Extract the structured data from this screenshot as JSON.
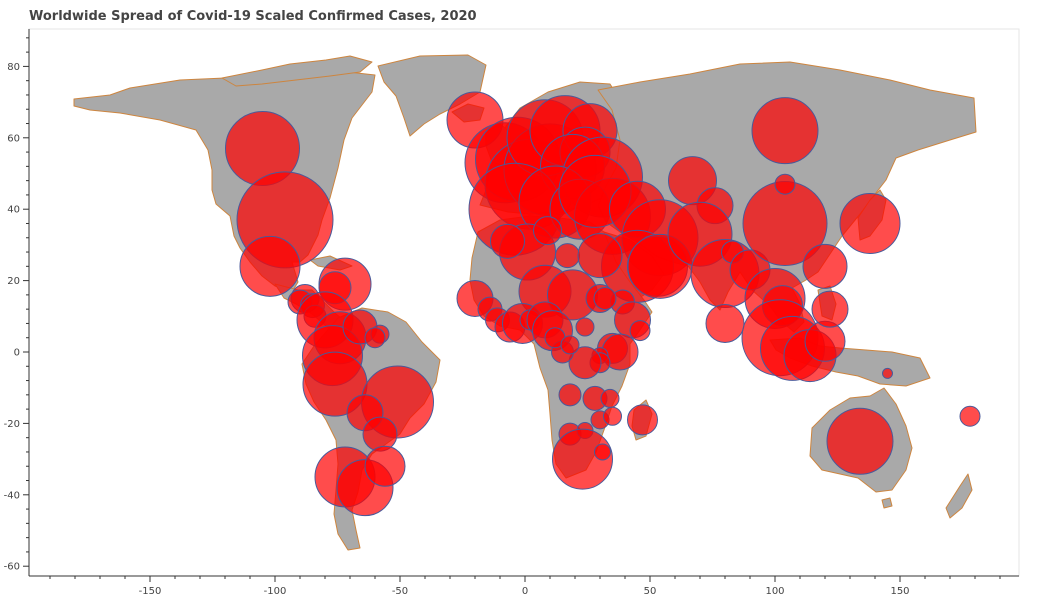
{
  "chart_data": {
    "type": "scatter",
    "title": "Worldwide Spread of Covid-19 Scaled Confirmed Cases, 2020",
    "xlabel": "",
    "ylabel": "",
    "xlim": [
      -198,
      198
    ],
    "ylim": [
      -62,
      90
    ],
    "x_ticks": [
      -150,
      -100,
      -50,
      0,
      50,
      100,
      150
    ],
    "y_ticks": [
      -60,
      -40,
      -20,
      0,
      20,
      40,
      60,
      80
    ],
    "grid": false,
    "legend": "none",
    "colors": {
      "land": "#a9a9a9",
      "border": "#cd853f",
      "bubble_fill": "#ff0000",
      "bubble_stroke": "#4a5a9a"
    },
    "points": [
      {
        "x": -105,
        "y": 57,
        "r": 37
      },
      {
        "x": -96,
        "y": 37,
        "r": 48
      },
      {
        "x": -102,
        "y": 24,
        "r": 30
      },
      {
        "x": -72,
        "y": 19,
        "r": 26
      },
      {
        "x": -76,
        "y": 18,
        "r": 16
      },
      {
        "x": -88,
        "y": 15,
        "r": 14
      },
      {
        "x": -90,
        "y": 14,
        "r": 12
      },
      {
        "x": -85,
        "y": 13,
        "r": 12
      },
      {
        "x": -84,
        "y": 10,
        "r": 11
      },
      {
        "x": -80,
        "y": 9,
        "r": 28
      },
      {
        "x": -74,
        "y": 4,
        "r": 26
      },
      {
        "x": -77,
        "y": -1,
        "r": 30
      },
      {
        "x": -76,
        "y": -9,
        "r": 32
      },
      {
        "x": -51,
        "y": -14,
        "r": 36
      },
      {
        "x": -64,
        "y": -17,
        "r": 18
      },
      {
        "x": -58,
        "y": -23,
        "r": 17
      },
      {
        "x": -72,
        "y": -35,
        "r": 30
      },
      {
        "x": -64,
        "y": -38,
        "r": 28
      },
      {
        "x": -56,
        "y": -32,
        "r": 20
      },
      {
        "x": -66,
        "y": 7,
        "r": 17
      },
      {
        "x": -58,
        "y": 5,
        "r": 9
      },
      {
        "x": -60,
        "y": 4,
        "r": 10
      },
      {
        "x": -20,
        "y": 65,
        "r": 28
      },
      {
        "x": -8,
        "y": 53,
        "r": 40
      },
      {
        "x": -3,
        "y": 54,
        "r": 42
      },
      {
        "x": 2,
        "y": 47,
        "r": 45
      },
      {
        "x": 10,
        "y": 51,
        "r": 46
      },
      {
        "x": 8,
        "y": 60,
        "r": 38
      },
      {
        "x": 16,
        "y": 62,
        "r": 35
      },
      {
        "x": 26,
        "y": 62,
        "r": 27
      },
      {
        "x": 24,
        "y": 56,
        "r": 25
      },
      {
        "x": 19,
        "y": 52,
        "r": 32
      },
      {
        "x": 31,
        "y": 49,
        "r": 40
      },
      {
        "x": -4,
        "y": 40,
        "r": 46
      },
      {
        "x": 12,
        "y": 42,
        "r": 36
      },
      {
        "x": 22,
        "y": 40,
        "r": 30
      },
      {
        "x": 35,
        "y": 38,
        "r": 38
      },
      {
        "x": 28,
        "y": 45,
        "r": 36
      },
      {
        "x": 45,
        "y": 40,
        "r": 28
      },
      {
        "x": 54,
        "y": 32,
        "r": 38
      },
      {
        "x": 45,
        "y": 24,
        "r": 36
      },
      {
        "x": 53,
        "y": 24,
        "r": 30
      },
      {
        "x": 54,
        "y": 24,
        "r": 32
      },
      {
        "x": 67,
        "y": 48,
        "r": 24
      },
      {
        "x": 76,
        "y": 41,
        "r": 18
      },
      {
        "x": 70,
        "y": 33,
        "r": 32
      },
      {
        "x": 80,
        "y": 22,
        "r": 34
      },
      {
        "x": 83,
        "y": 28,
        "r": 11
      },
      {
        "x": 90,
        "y": 23,
        "r": 20
      },
      {
        "x": 80,
        "y": 8,
        "r": 19
      },
      {
        "x": 104,
        "y": 36,
        "r": 42
      },
      {
        "x": 104,
        "y": 47,
        "r": 10
      },
      {
        "x": 104,
        "y": 62,
        "r": 33
      },
      {
        "x": 120,
        "y": 24,
        "r": 22
      },
      {
        "x": 138,
        "y": 36,
        "r": 30
      },
      {
        "x": 100,
        "y": 15,
        "r": 30
      },
      {
        "x": 103,
        "y": 13,
        "r": 20
      },
      {
        "x": 102,
        "y": 4,
        "r": 38
      },
      {
        "x": 107,
        "y": 1,
        "r": 32
      },
      {
        "x": 114,
        "y": -1,
        "r": 26
      },
      {
        "x": 120,
        "y": 3,
        "r": 20
      },
      {
        "x": 122,
        "y": 12,
        "r": 18
      },
      {
        "x": 134,
        "y": -25,
        "r": 33
      },
      {
        "x": 145,
        "y": -6,
        "r": 5
      },
      {
        "x": 178,
        "y": -18,
        "r": 10
      },
      {
        "x": 1,
        "y": 28,
        "r": 28
      },
      {
        "x": -7,
        "y": 31,
        "r": 17
      },
      {
        "x": 9,
        "y": 34,
        "r": 14
      },
      {
        "x": 17,
        "y": 27,
        "r": 12
      },
      {
        "x": 30,
        "y": 27,
        "r": 22
      },
      {
        "x": 8,
        "y": 17,
        "r": 26
      },
      {
        "x": 19,
        "y": 16,
        "r": 25
      },
      {
        "x": -20,
        "y": 15,
        "r": 18
      },
      {
        "x": -14,
        "y": 12,
        "r": 12
      },
      {
        "x": -11,
        "y": 9,
        "r": 12
      },
      {
        "x": -6,
        "y": 7,
        "r": 15
      },
      {
        "x": -1,
        "y": 8,
        "r": 20
      },
      {
        "x": 2,
        "y": 9,
        "r": 10
      },
      {
        "x": 8,
        "y": 9,
        "r": 18
      },
      {
        "x": 11,
        "y": 6,
        "r": 20
      },
      {
        "x": 24,
        "y": 7,
        "r": 9
      },
      {
        "x": 30,
        "y": 15,
        "r": 14
      },
      {
        "x": 39,
        "y": 14,
        "r": 12
      },
      {
        "x": 43,
        "y": 9,
        "r": 18
      },
      {
        "x": 46,
        "y": 6,
        "r": 10
      },
      {
        "x": 35,
        "y": 1,
        "r": 15
      },
      {
        "x": 38,
        "y": 0,
        "r": 18
      },
      {
        "x": 30,
        "y": -1,
        "r": 8
      },
      {
        "x": 30,
        "y": -3,
        "r": 10
      },
      {
        "x": 24,
        "y": -3,
        "r": 16
      },
      {
        "x": 15,
        "y": 0,
        "r": 11
      },
      {
        "x": 12,
        "y": 4,
        "r": 10
      },
      {
        "x": 18,
        "y": -12,
        "r": 11
      },
      {
        "x": 28,
        "y": -13,
        "r": 12
      },
      {
        "x": 34,
        "y": -13,
        "r": 9
      },
      {
        "x": 30,
        "y": -19,
        "r": 9
      },
      {
        "x": 35,
        "y": -18,
        "r": 9
      },
      {
        "x": 47,
        "y": -19,
        "r": 15
      },
      {
        "x": 18,
        "y": -23,
        "r": 11
      },
      {
        "x": 24,
        "y": -22,
        "r": 8
      },
      {
        "x": 23,
        "y": -30,
        "r": 30
      },
      {
        "x": 31,
        "y": -28,
        "r": 8
      },
      {
        "x": 18,
        "y": 2,
        "r": 9
      },
      {
        "x": 32,
        "y": 15,
        "r": 11
      }
    ]
  }
}
